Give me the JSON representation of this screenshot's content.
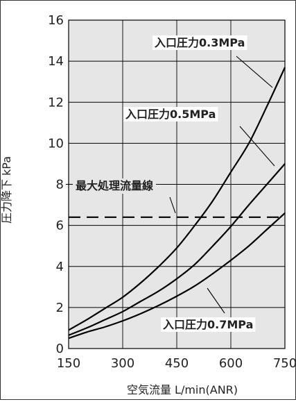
{
  "chart_data": {
    "type": "line",
    "title": "",
    "xlabel": "空気流量 L/min(ANR)",
    "ylabel": "圧力降下 kPa",
    "xlim": [
      150,
      750
    ],
    "ylim": [
      0,
      16
    ],
    "x_ticks": [
      150,
      300,
      450,
      600,
      750
    ],
    "y_ticks": [
      0,
      2,
      4,
      6,
      8,
      10,
      12,
      14,
      16
    ],
    "x_tick_labels": [
      "150",
      "300",
      "450",
      "600",
      "750"
    ],
    "y_tick_labels": [
      "0",
      "2",
      "4",
      "6",
      "8",
      "10",
      "12",
      "14",
      "16"
    ],
    "grid": true,
    "background_color": "#e6e6e6",
    "line_color": "#000000",
    "series": [
      {
        "name": "入口圧力0.3MPa",
        "x": [
          150,
          200,
          250,
          300,
          350,
          400,
          450,
          500,
          550,
          600,
          650,
          700,
          750
        ],
        "y": [
          0.9,
          1.4,
          1.95,
          2.5,
          3.2,
          4.0,
          4.9,
          6.0,
          7.2,
          8.6,
          10.0,
          11.8,
          13.7
        ]
      },
      {
        "name": "入口圧力0.5MPa",
        "x": [
          150,
          200,
          250,
          300,
          350,
          400,
          450,
          500,
          550,
          600,
          650,
          700,
          750
        ],
        "y": [
          0.65,
          1.0,
          1.4,
          1.8,
          2.3,
          2.8,
          3.4,
          4.1,
          5.0,
          5.95,
          7.0,
          8.0,
          9.0
        ]
      },
      {
        "name": "入口圧力0.7MPa",
        "x": [
          150,
          200,
          250,
          300,
          350,
          400,
          450,
          500,
          550,
          600,
          650,
          700,
          750
        ],
        "y": [
          0.5,
          0.8,
          1.05,
          1.35,
          1.7,
          2.1,
          2.55,
          3.05,
          3.65,
          4.3,
          5.0,
          5.8,
          6.6
        ]
      }
    ],
    "reference_line": {
      "label": "最大処理流量線",
      "y": 6.4,
      "style": "dashed"
    }
  }
}
